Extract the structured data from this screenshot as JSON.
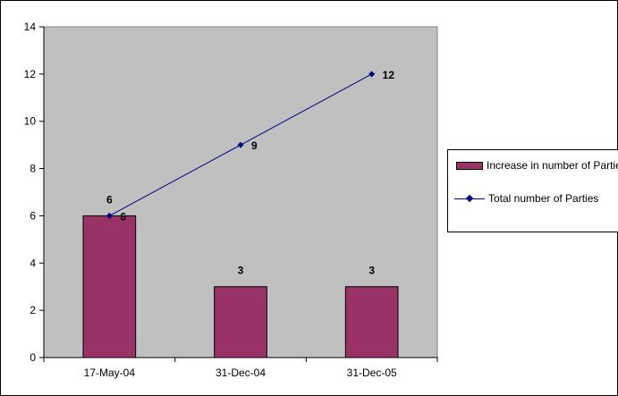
{
  "chart_data": {
    "type": "bar",
    "title": "",
    "xlabel": "",
    "ylabel": "",
    "categories": [
      "17-May-04",
      "31-Dec-04",
      "31-Dec-05"
    ],
    "y_ticks": [
      "0",
      "2",
      "4",
      "6",
      "8",
      "10",
      "12",
      "14"
    ],
    "ylim": [
      0,
      14
    ],
    "grid": false,
    "legend_position": "right",
    "plot_background": "#c0c0c0",
    "series": [
      {
        "name": "Increase in number of Parties",
        "type": "bar",
        "color": "#993366",
        "values": [
          6,
          3,
          3
        ],
        "labels": [
          "6",
          "3",
          "3"
        ]
      },
      {
        "name": "Total number of Parties",
        "type": "line",
        "color": "#000080",
        "values": [
          6,
          9,
          12
        ],
        "labels": [
          "6",
          "9",
          "12"
        ]
      }
    ]
  }
}
